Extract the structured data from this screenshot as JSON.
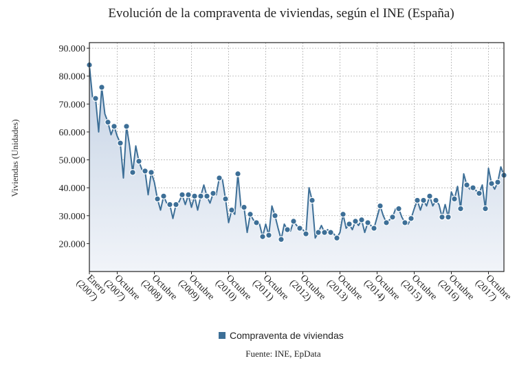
{
  "chart_data": {
    "type": "line",
    "title": "Evolución de la compraventa de viviendas, según el INE (España)",
    "ylabel": "Viviendas (Unidades)",
    "xlabel": "",
    "source": "Fuente: INE, EpData",
    "ylim": [
      10000,
      92000
    ],
    "grid": true,
    "legend_position": "bottom-center",
    "colors": {
      "line": "#3d6f97",
      "marker": "#3d6f97",
      "marker_edge": "#ffffff",
      "area_top": "#c4d2e4",
      "area_bottom": "#f1f4f9",
      "grid": "#b0b0b0"
    },
    "y_ticks": [
      {
        "value": 20000,
        "label": "20.000"
      },
      {
        "value": 30000,
        "label": "30.000"
      },
      {
        "value": 40000,
        "label": "40.000"
      },
      {
        "value": 50000,
        "label": "50.000"
      },
      {
        "value": 60000,
        "label": "60.000"
      },
      {
        "value": 70000,
        "label": "70.000"
      },
      {
        "value": 80000,
        "label": "80.000"
      },
      {
        "value": 90000,
        "label": "90.000"
      }
    ],
    "x_ticks": [
      {
        "index": 0,
        "line1": "Enero",
        "line2": "(2007)"
      },
      {
        "index": 9,
        "line1": "Octubre",
        "line2": "(2007)"
      },
      {
        "index": 21,
        "line1": "Octubre",
        "line2": "(2008)"
      },
      {
        "index": 33,
        "line1": "Octubre",
        "line2": "(2009)"
      },
      {
        "index": 45,
        "line1": "Octubre",
        "line2": "(2010)"
      },
      {
        "index": 57,
        "line1": "Octubre",
        "line2": "(2011)"
      },
      {
        "index": 69,
        "line1": "Octubre",
        "line2": "(2012)"
      },
      {
        "index": 81,
        "line1": "Octubre",
        "line2": "(2013)"
      },
      {
        "index": 93,
        "line1": "Octubre",
        "line2": "(2014)"
      },
      {
        "index": 105,
        "line1": "Octubre",
        "line2": "(2015)"
      },
      {
        "index": 117,
        "line1": "Octubre",
        "line2": "(2016)"
      },
      {
        "index": 129,
        "line1": "Octubre",
        "line2": "(2017)"
      }
    ],
    "series": [
      {
        "name": "Compraventa de viviendas",
        "start": "Enero 2007",
        "frequency": "monthly",
        "values": [
          84000,
          72500,
          72000,
          60000,
          76000,
          66500,
          63500,
          59000,
          62000,
          58500,
          56000,
          43500,
          62000,
          55000,
          45500,
          55000,
          49500,
          46500,
          46000,
          37500,
          45500,
          42000,
          36000,
          32000,
          37000,
          34500,
          34000,
          29000,
          34000,
          35000,
          37500,
          34000,
          37500,
          33000,
          37000,
          32000,
          37000,
          41000,
          37000,
          34500,
          38000,
          37500,
          43500,
          43000,
          36000,
          27500,
          32000,
          30500,
          45000,
          33000,
          33000,
          24000,
          30500,
          28500,
          27500,
          27000,
          22500,
          27000,
          23000,
          33500,
          30000,
          25500,
          21500,
          27000,
          25000,
          24500,
          28000,
          26500,
          25500,
          25000,
          23500,
          40000,
          35500,
          22000,
          24000,
          26500,
          24000,
          25000,
          24000,
          23500,
          22000,
          24000,
          30500,
          25500,
          27000,
          25000,
          28000,
          26500,
          28500,
          24000,
          27500,
          26500,
          25500,
          29500,
          33500,
          30000,
          27500,
          28500,
          29500,
          32500,
          32500,
          29500,
          27500,
          27000,
          29000,
          32500,
          35500,
          32000,
          35500,
          33500,
          37000,
          33500,
          35500,
          34000,
          29500,
          34000,
          29500,
          38500,
          36000,
          40500,
          32500,
          45000,
          41000,
          39500,
          40000,
          39000,
          38000,
          41000,
          32500,
          47000,
          41500,
          39500,
          42000,
          47500,
          44500
        ]
      }
    ]
  }
}
